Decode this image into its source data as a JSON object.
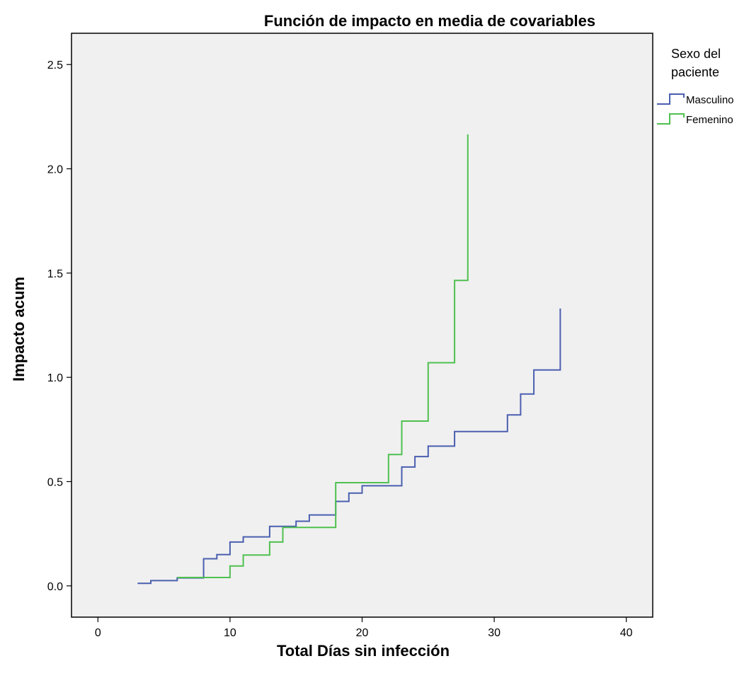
{
  "chart_data": {
    "type": "line",
    "step": true,
    "title": "Función de impacto en media de covariables",
    "xlabel": "Total Días sin infección",
    "ylabel": "Impacto acum",
    "xlim": [
      -2,
      42
    ],
    "ylim": [
      -0.15,
      2.65
    ],
    "xticks": [
      0,
      10,
      20,
      30,
      40
    ],
    "yticks": [
      0.0,
      0.5,
      1.0,
      1.5,
      2.0,
      2.5
    ],
    "ytick_labels": [
      "0.0",
      "0.5",
      "1.0",
      "1.5",
      "2.0",
      "2.5"
    ],
    "grid": false,
    "legend": {
      "title_lines": [
        "Sexo del",
        "paciente"
      ],
      "placement": "right"
    },
    "series": [
      {
        "name": "Masculino",
        "color": "#4a5fb0",
        "points": [
          [
            3,
            0.012
          ],
          [
            4,
            0.025
          ],
          [
            6,
            0.038
          ],
          [
            8,
            0.13
          ],
          [
            9,
            0.15
          ],
          [
            10,
            0.21
          ],
          [
            11,
            0.235
          ],
          [
            13,
            0.285
          ],
          [
            15,
            0.31
          ],
          [
            16,
            0.34
          ],
          [
            18,
            0.405
          ],
          [
            19,
            0.445
          ],
          [
            20,
            0.48
          ],
          [
            23,
            0.57
          ],
          [
            24,
            0.62
          ],
          [
            25,
            0.67
          ],
          [
            27,
            0.74
          ],
          [
            31,
            0.82
          ],
          [
            32,
            0.92
          ],
          [
            33,
            1.035
          ],
          [
            35,
            1.33
          ]
        ]
      },
      {
        "name": "Femenino",
        "color": "#4fc04f",
        "points": [
          [
            6,
            0.04
          ],
          [
            10,
            0.095
          ],
          [
            11,
            0.148
          ],
          [
            13,
            0.21
          ],
          [
            14,
            0.28
          ],
          [
            18,
            0.495
          ],
          [
            22,
            0.63
          ],
          [
            23,
            0.79
          ],
          [
            25,
            1.07
          ],
          [
            27,
            1.465
          ],
          [
            28,
            2.165
          ]
        ]
      }
    ]
  }
}
